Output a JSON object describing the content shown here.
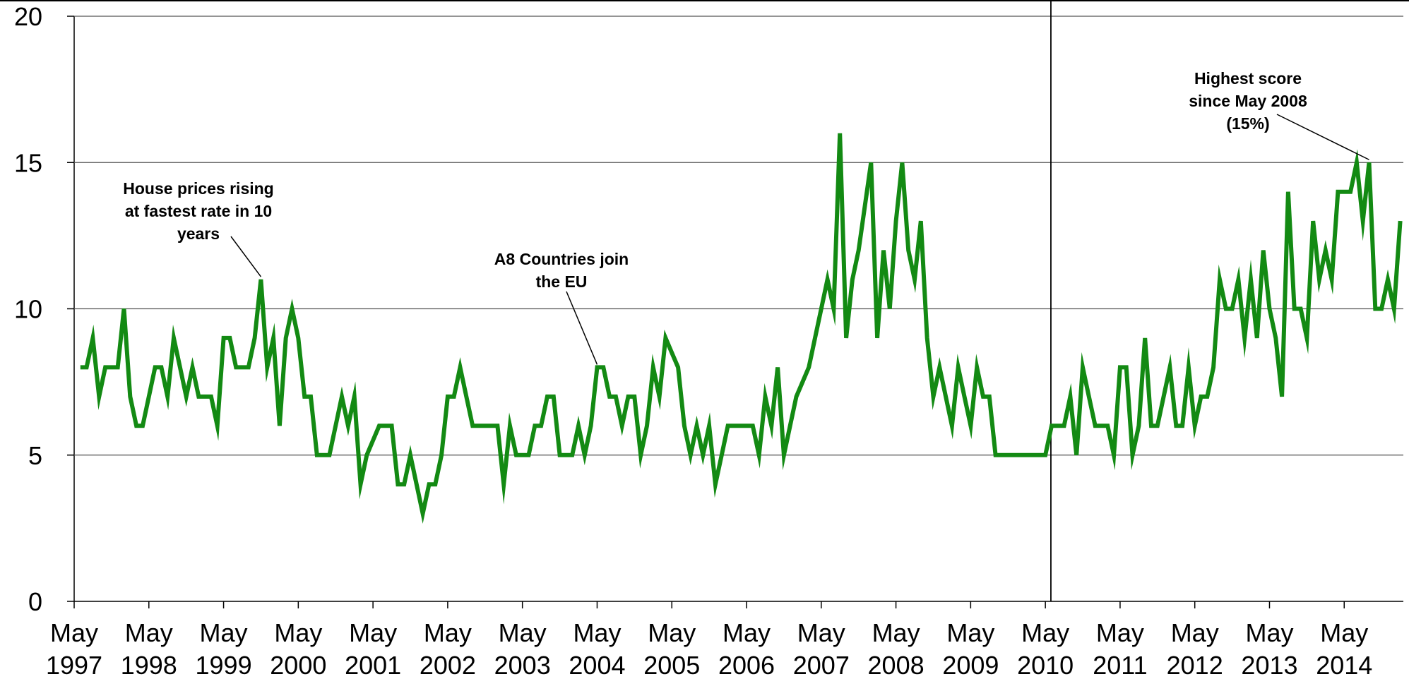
{
  "chart_data": {
    "type": "line",
    "title": "",
    "xlabel": "",
    "ylabel": "",
    "ylim": [
      0,
      20
    ],
    "yticks": [
      "0",
      "5",
      "10",
      "15",
      "20"
    ],
    "xticks": [
      {
        "top": "May",
        "bottom": "1997",
        "at": 0
      },
      {
        "top": "May",
        "bottom": "1998",
        "at": 12
      },
      {
        "top": "May",
        "bottom": "1999",
        "at": 24
      },
      {
        "top": "May",
        "bottom": "2000",
        "at": 36
      },
      {
        "top": "May",
        "bottom": "2001",
        "at": 48
      },
      {
        "top": "May",
        "bottom": "2002",
        "at": 60
      },
      {
        "top": "May",
        "bottom": "2003",
        "at": 72
      },
      {
        "top": "May",
        "bottom": "2004",
        "at": 84
      },
      {
        "top": "May",
        "bottom": "2005",
        "at": 96
      },
      {
        "top": "May",
        "bottom": "2006",
        "at": 108
      },
      {
        "top": "May",
        "bottom": "2007",
        "at": 120
      },
      {
        "top": "May",
        "bottom": "2008",
        "at": 132
      },
      {
        "top": "May",
        "bottom": "2009",
        "at": 144
      },
      {
        "top": "May",
        "bottom": "2010",
        "at": 156
      },
      {
        "top": "May",
        "bottom": "2011",
        "at": 168
      },
      {
        "top": "May",
        "bottom": "2012",
        "at": 180
      },
      {
        "top": "May",
        "bottom": "2013",
        "at": 192
      },
      {
        "top": "May",
        "bottom": "2014",
        "at": 204
      }
    ],
    "x_range_months": [
      0,
      213
    ],
    "grid": "horizontal",
    "vertical_marker_at": 157,
    "series": [
      {
        "color": "#138a13",
        "points": [
          [
            1,
            8
          ],
          [
            2,
            8
          ],
          [
            3,
            9
          ],
          [
            4,
            7
          ],
          [
            5,
            8
          ],
          [
            6,
            8
          ],
          [
            7,
            8
          ],
          [
            8,
            10
          ],
          [
            9,
            7
          ],
          [
            10,
            6
          ],
          [
            11,
            6
          ],
          [
            12,
            7
          ],
          [
            13,
            8
          ],
          [
            14,
            8
          ],
          [
            15,
            7
          ],
          [
            16,
            9
          ],
          [
            17,
            8
          ],
          [
            18,
            7
          ],
          [
            19,
            8
          ],
          [
            20,
            7
          ],
          [
            21,
            7
          ],
          [
            22,
            7
          ],
          [
            23,
            6
          ],
          [
            24,
            9
          ],
          [
            25,
            9
          ],
          [
            26,
            8
          ],
          [
            27,
            8
          ],
          [
            28,
            8
          ],
          [
            29,
            9
          ],
          [
            30,
            11
          ],
          [
            31,
            8
          ],
          [
            32,
            9
          ],
          [
            33,
            6
          ],
          [
            34,
            9
          ],
          [
            35,
            10
          ],
          [
            36,
            9
          ],
          [
            37,
            7
          ],
          [
            38,
            7
          ],
          [
            39,
            5
          ],
          [
            40,
            5
          ],
          [
            41,
            5
          ],
          [
            42,
            6
          ],
          [
            43,
            7
          ],
          [
            44,
            6
          ],
          [
            45,
            7
          ],
          [
            46,
            4
          ],
          [
            47,
            5
          ],
          [
            48,
            5.5
          ],
          [
            49,
            6
          ],
          [
            50,
            6
          ],
          [
            51,
            6
          ],
          [
            52,
            4
          ],
          [
            53,
            4
          ],
          [
            54,
            5
          ],
          [
            55,
            4
          ],
          [
            56,
            3
          ],
          [
            57,
            4
          ],
          [
            58,
            4
          ],
          [
            59,
            5
          ],
          [
            60,
            7
          ],
          [
            61,
            7
          ],
          [
            62,
            8
          ],
          [
            63,
            7
          ],
          [
            64,
            6
          ],
          [
            65,
            6
          ],
          [
            66,
            6
          ],
          [
            67,
            6
          ],
          [
            68,
            6
          ],
          [
            69,
            4
          ],
          [
            70,
            6
          ],
          [
            71,
            5
          ],
          [
            72,
            5
          ],
          [
            73,
            5
          ],
          [
            74,
            6
          ],
          [
            75,
            6
          ],
          [
            76,
            7
          ],
          [
            77,
            7
          ],
          [
            78,
            5
          ],
          [
            79,
            5
          ],
          [
            80,
            5
          ],
          [
            81,
            6
          ],
          [
            82,
            5
          ],
          [
            83,
            6
          ],
          [
            84,
            8
          ],
          [
            85,
            8
          ],
          [
            86,
            7
          ],
          [
            87,
            7
          ],
          [
            88,
            6
          ],
          [
            89,
            7
          ],
          [
            90,
            7
          ],
          [
            91,
            5
          ],
          [
            92,
            6
          ],
          [
            93,
            8
          ],
          [
            94,
            7
          ],
          [
            95,
            9
          ],
          [
            96,
            8.5
          ],
          [
            97,
            8
          ],
          [
            98,
            6
          ],
          [
            99,
            5
          ],
          [
            100,
            6
          ],
          [
            101,
            5
          ],
          [
            102,
            6
          ],
          [
            103,
            4
          ],
          [
            104,
            5
          ],
          [
            105,
            6
          ],
          [
            106,
            6
          ],
          [
            107,
            6
          ],
          [
            108,
            6
          ],
          [
            109,
            6
          ],
          [
            110,
            5
          ],
          [
            111,
            7
          ],
          [
            112,
            6
          ],
          [
            113,
            8
          ],
          [
            114,
            5
          ],
          [
            115,
            6
          ],
          [
            116,
            7
          ],
          [
            117,
            7.5
          ],
          [
            118,
            8
          ],
          [
            119,
            9
          ],
          [
            120,
            10
          ],
          [
            121,
            11
          ],
          [
            122,
            10
          ],
          [
            123,
            16
          ],
          [
            124,
            9
          ],
          [
            125,
            11
          ],
          [
            126,
            12
          ],
          [
            127,
            13.5
          ],
          [
            128,
            15
          ],
          [
            129,
            9
          ],
          [
            130,
            12
          ],
          [
            131,
            10
          ],
          [
            132,
            13
          ],
          [
            133,
            15
          ],
          [
            134,
            12
          ],
          [
            135,
            11
          ],
          [
            136,
            13
          ],
          [
            137,
            9
          ],
          [
            138,
            7
          ],
          [
            139,
            8
          ],
          [
            140,
            7
          ],
          [
            141,
            6
          ],
          [
            142,
            8
          ],
          [
            143,
            7
          ],
          [
            144,
            6
          ],
          [
            145,
            8
          ],
          [
            146,
            7
          ],
          [
            147,
            7
          ],
          [
            148,
            5
          ],
          [
            149,
            5
          ],
          [
            150,
            5
          ],
          [
            151,
            5
          ],
          [
            152,
            5
          ],
          [
            153,
            5
          ],
          [
            154,
            5
          ],
          [
            155,
            5
          ],
          [
            156,
            5
          ],
          [
            157,
            6
          ],
          [
            158,
            6
          ],
          [
            159,
            6
          ],
          [
            160,
            7
          ],
          [
            161,
            5
          ],
          [
            162,
            8
          ],
          [
            163,
            7
          ],
          [
            164,
            6
          ],
          [
            165,
            6
          ],
          [
            166,
            6
          ],
          [
            167,
            5
          ],
          [
            168,
            8
          ],
          [
            169,
            8
          ],
          [
            170,
            5
          ],
          [
            171,
            6
          ],
          [
            172,
            9
          ],
          [
            173,
            6
          ],
          [
            174,
            6
          ],
          [
            175,
            7
          ],
          [
            176,
            8
          ],
          [
            177,
            6
          ],
          [
            178,
            6
          ],
          [
            179,
            8
          ],
          [
            180,
            6
          ],
          [
            181,
            7
          ],
          [
            182,
            7
          ],
          [
            183,
            8
          ],
          [
            184,
            11
          ],
          [
            185,
            10
          ],
          [
            186,
            10
          ],
          [
            187,
            11
          ],
          [
            188,
            9
          ],
          [
            189,
            11
          ],
          [
            190,
            9
          ],
          [
            191,
            12
          ],
          [
            192,
            10
          ],
          [
            193,
            9
          ],
          [
            194,
            7
          ],
          [
            195,
            14
          ],
          [
            196,
            10
          ],
          [
            197,
            10
          ],
          [
            198,
            9
          ],
          [
            199,
            13
          ],
          [
            200,
            11
          ],
          [
            201,
            12
          ],
          [
            202,
            11
          ],
          [
            203,
            14
          ],
          [
            204,
            14
          ],
          [
            205,
            14
          ],
          [
            206,
            15
          ],
          [
            207,
            13
          ],
          [
            208,
            15
          ],
          [
            209,
            10
          ],
          [
            210,
            10
          ],
          [
            211,
            11
          ],
          [
            212,
            10
          ],
          [
            213,
            13
          ]
        ]
      }
    ],
    "annotations": [
      {
        "lines": [
          "House prices rising",
          "at fastest rate in 10",
          "years"
        ],
        "target": [
          30,
          11
        ]
      },
      {
        "lines": [
          "A8 Countries join",
          "the EU"
        ],
        "target": [
          84,
          8
        ]
      },
      {
        "lines": [
          "Highest score",
          "since May 2008",
          "(15%)"
        ],
        "target": [
          208,
          15
        ]
      }
    ]
  }
}
